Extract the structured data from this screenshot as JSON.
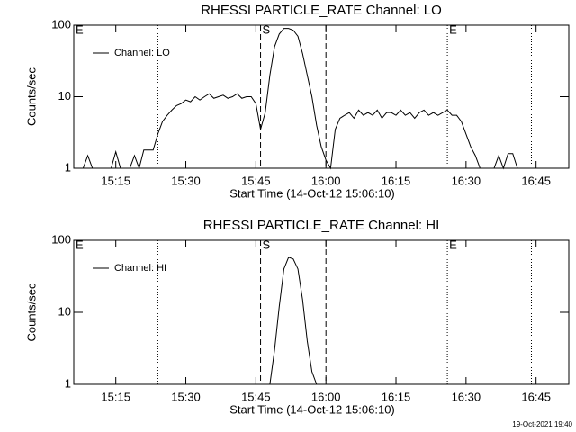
{
  "chart_data": [
    {
      "type": "line",
      "title": "RHESSI PARTICLE_RATE Channel: LO",
      "xlabel": "Start Time (14-Oct-12 15:06:10)",
      "ylabel": "Counts/sec",
      "log_y": true,
      "legend": "upper left",
      "x": [
        "15:06",
        "15:07",
        "15:08",
        "15:09",
        "15:10",
        "15:11",
        "15:12",
        "15:13",
        "15:14",
        "15:15",
        "15:16",
        "15:17",
        "15:18",
        "15:19",
        "15:20",
        "15:21",
        "15:22",
        "15:23",
        "15:24",
        "15:25",
        "15:26",
        "15:27",
        "15:28",
        "15:29",
        "15:30",
        "15:31",
        "15:32",
        "15:33",
        "15:34",
        "15:35",
        "15:36",
        "15:37",
        "15:38",
        "15:39",
        "15:40",
        "15:41",
        "15:42",
        "15:43",
        "15:44",
        "15:45",
        "15:46",
        "15:47",
        "15:48",
        "15:49",
        "15:50",
        "15:51",
        "15:52",
        "15:53",
        "15:54",
        "15:55",
        "15:56",
        "15:57",
        "15:58",
        "15:59",
        "16:00",
        "16:01",
        "16:02",
        "16:03",
        "16:04",
        "16:05",
        "16:06",
        "16:07",
        "16:08",
        "16:09",
        "16:10",
        "16:11",
        "16:12",
        "16:13",
        "16:14",
        "16:15",
        "16:16",
        "16:17",
        "16:18",
        "16:19",
        "16:20",
        "16:21",
        "16:22",
        "16:23",
        "16:24",
        "16:25",
        "16:26",
        "16:27",
        "16:28",
        "16:29",
        "16:30",
        "16:31",
        "16:32",
        "16:33",
        "16:34",
        "16:35",
        "16:36",
        "16:37",
        "16:38",
        "16:39",
        "16:40",
        "16:41",
        "16:42",
        "16:43",
        "16:44",
        "16:45",
        "16:46",
        "16:47",
        "16:48",
        "16:49",
        "16:50",
        "16:51",
        "16:52"
      ],
      "series": [
        {
          "name": "Channel: LO",
          "color": "#000000",
          "values": [
            1,
            1,
            1,
            1.5,
            1,
            1,
            1,
            1,
            1,
            1.7,
            1,
            1,
            1,
            1.5,
            1,
            1.8,
            1.8,
            1.8,
            3,
            4.5,
            5.5,
            6.5,
            7.5,
            8,
            9,
            8.5,
            10,
            9,
            10,
            11,
            9.5,
            10,
            10.5,
            9.5,
            10,
            11,
            9.5,
            10,
            10,
            8,
            3.5,
            6,
            20,
            50,
            75,
            90,
            90,
            85,
            70,
            40,
            20,
            10,
            4,
            2,
            1.3,
            1,
            3.5,
            5,
            5.5,
            6,
            5,
            6.5,
            5.5,
            6,
            5.5,
            6.5,
            5,
            6,
            6,
            5.5,
            6.5,
            5.5,
            6,
            5,
            6,
            6.5,
            5.5,
            6,
            5.5,
            6,
            6.5,
            5.5,
            5.5,
            4.5,
            3,
            2,
            1.5,
            1,
            1,
            1,
            1,
            1.5,
            1,
            1.6,
            1.6,
            1,
            1,
            1,
            1,
            1,
            1,
            1,
            1,
            1,
            1,
            1,
            1
          ]
        }
      ],
      "xlim": [
        "15:06",
        "16:52"
      ],
      "ylim": [
        1,
        100
      ],
      "xticks": [
        "15:15",
        "15:30",
        "15:45",
        "16:00",
        "16:15",
        "16:30",
        "16:45"
      ],
      "yticks": [
        1,
        10,
        100
      ],
      "markers": [
        {
          "x": "15:24",
          "style": "dotted"
        },
        {
          "x": "15:46",
          "style": "dashed"
        },
        {
          "x": "16:00",
          "style": "dashed"
        },
        {
          "x": "16:26",
          "style": "dotted"
        },
        {
          "x": "16:44",
          "style": "dotted"
        }
      ],
      "annotations": [
        {
          "text": "E",
          "x": "15:06"
        },
        {
          "text": "S",
          "x": "15:46"
        },
        {
          "text": "E",
          "x": "16:26"
        }
      ]
    },
    {
      "type": "line",
      "title": "RHESSI PARTICLE_RATE Channel: HI",
      "xlabel": "Start Time (14-Oct-12 15:06:10)",
      "ylabel": "Counts/sec",
      "log_y": true,
      "legend": "upper left",
      "x": [
        "15:06",
        "15:07",
        "15:08",
        "15:09",
        "15:10",
        "15:11",
        "15:12",
        "15:13",
        "15:14",
        "15:15",
        "15:16",
        "15:17",
        "15:18",
        "15:19",
        "15:20",
        "15:21",
        "15:22",
        "15:23",
        "15:24",
        "15:25",
        "15:26",
        "15:27",
        "15:28",
        "15:29",
        "15:30",
        "15:31",
        "15:32",
        "15:33",
        "15:34",
        "15:35",
        "15:36",
        "15:37",
        "15:38",
        "15:39",
        "15:40",
        "15:41",
        "15:42",
        "15:43",
        "15:44",
        "15:45",
        "15:46",
        "15:47",
        "15:48",
        "15:49",
        "15:50",
        "15:51",
        "15:52",
        "15:53",
        "15:54",
        "15:55",
        "15:56",
        "15:57",
        "15:58",
        "15:59",
        "16:00",
        "16:01",
        "16:02",
        "16:03",
        "16:04",
        "16:05",
        "16:06",
        "16:07",
        "16:08",
        "16:09",
        "16:10",
        "16:11",
        "16:12",
        "16:13",
        "16:14",
        "16:15",
        "16:16",
        "16:17",
        "16:18",
        "16:19",
        "16:20",
        "16:21",
        "16:22",
        "16:23",
        "16:24",
        "16:25",
        "16:26",
        "16:27",
        "16:28",
        "16:29",
        "16:30",
        "16:31",
        "16:32",
        "16:33",
        "16:34",
        "16:35",
        "16:36",
        "16:37",
        "16:38",
        "16:39",
        "16:40",
        "16:41",
        "16:42",
        "16:43",
        "16:44",
        "16:45",
        "16:46",
        "16:47",
        "16:48",
        "16:49",
        "16:50",
        "16:51",
        "16:52"
      ],
      "series": [
        {
          "name": "Channel: HI",
          "color": "#000000",
          "values": [
            1,
            1,
            1,
            1,
            1,
            1,
            1,
            1,
            1,
            1,
            1,
            1,
            1,
            1,
            1,
            1,
            1,
            1,
            1,
            1,
            1,
            1,
            1,
            1,
            1,
            1,
            1,
            1,
            1,
            1,
            1,
            1,
            1,
            1,
            1,
            1,
            1,
            1,
            1,
            1,
            1,
            1,
            1,
            3,
            12,
            40,
            58,
            55,
            40,
            15,
            4,
            1.5,
            1,
            1,
            1,
            1,
            1,
            1,
            1,
            1,
            1,
            1,
            1,
            1,
            1,
            1,
            1,
            1,
            1,
            1,
            1,
            1,
            1,
            1,
            1,
            1,
            1,
            1,
            1,
            1,
            1,
            1,
            1,
            1,
            1,
            1,
            1,
            1,
            1,
            1,
            1,
            1,
            1,
            1,
            1,
            1,
            1,
            1,
            1,
            1,
            1,
            1,
            1,
            1,
            1,
            1,
            1
          ]
        }
      ],
      "xlim": [
        "15:06",
        "16:52"
      ],
      "ylim": [
        1,
        100
      ],
      "xticks": [
        "15:15",
        "15:30",
        "15:45",
        "16:00",
        "16:15",
        "16:30",
        "16:45"
      ],
      "yticks": [
        1,
        10,
        100
      ],
      "markers": [
        {
          "x": "15:24",
          "style": "dotted"
        },
        {
          "x": "15:46",
          "style": "dashed"
        },
        {
          "x": "16:00",
          "style": "dashed"
        },
        {
          "x": "16:26",
          "style": "dotted"
        },
        {
          "x": "16:44",
          "style": "dotted"
        }
      ],
      "annotations": [
        {
          "text": "E",
          "x": "15:06"
        },
        {
          "text": "S",
          "x": "15:46"
        },
        {
          "text": "E",
          "x": "16:26"
        }
      ]
    }
  ],
  "footer": "19-Oct-2021 19:40"
}
